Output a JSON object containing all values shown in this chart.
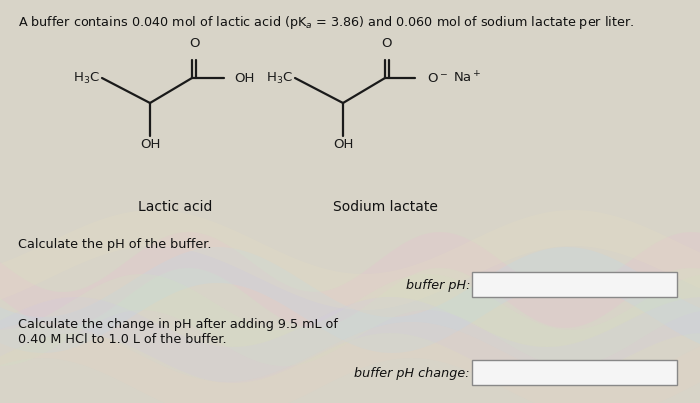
{
  "title_line1": "A buffer contains 0.040 mol of lactic acid (pK",
  "title_sub": "a",
  "title_line2": " = 3.86) and 0.060 mol of sodium lactate per liter.",
  "bg_color": "#d8d4c8",
  "molecule_color": "#1a1a1a",
  "text_color": "#111111",
  "question1": "Calculate the pH of the buffer.",
  "label1": "buffer pH:",
  "question2_line1": "Calculate the change in pH after adding 9.5 mL of",
  "question2_line2": "0.40 M HCl to 1.0 L of the buffer.",
  "label2": "buffer pH change:",
  "lactic_acid_label": "Lactic acid",
  "sodium_lactate_label": "Sodium lactate",
  "box_edge_color": "#888888",
  "box_face_color": "#f5f5f5"
}
